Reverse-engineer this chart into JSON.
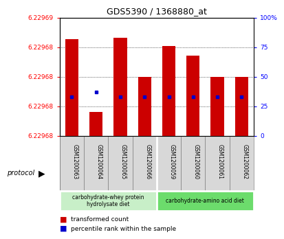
{
  "title": "GDS5390 / 1368880_at",
  "samples": [
    "GSM1200063",
    "GSM1200064",
    "GSM1200065",
    "GSM1200066",
    "GSM1200059",
    "GSM1200060",
    "GSM1200061",
    "GSM1200062"
  ],
  "percentile_ranks": [
    82,
    20,
    83,
    50,
    76,
    68,
    50,
    50
  ],
  "percentile_dots": [
    33,
    37,
    33,
    33,
    33,
    33,
    33,
    33
  ],
  "right_yticks": [
    0,
    25,
    50,
    75,
    100
  ],
  "right_ytick_labels": [
    "0",
    "25",
    "50",
    "75",
    "100%"
  ],
  "left_ytick_labels": [
    "6.22968",
    "6.22968",
    "6.22968",
    "6.22968",
    "6.22969"
  ],
  "group1_label": "carbohydrate-whey protein\nhydrolysate diet",
  "group2_label": "carbohydrate-amino acid diet",
  "group1_color": "#c8efc8",
  "group2_color": "#6cdc6c",
  "protocol_label": "protocol",
  "bar_color": "#cc0000",
  "dot_color": "#0000cc",
  "legend_bar_label": "transformed count",
  "legend_dot_label": "percentile rank within the sample",
  "background_color": "#d8d8d8",
  "plot_bg_color": "#ffffff",
  "n_samples": 8,
  "n_group1": 4,
  "n_group2": 4
}
